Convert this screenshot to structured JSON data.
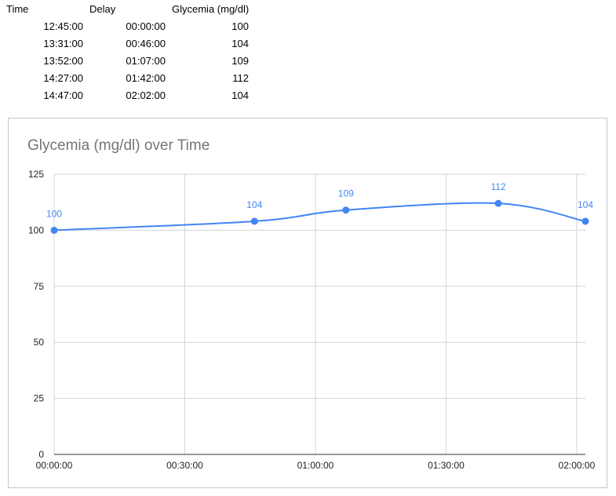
{
  "table": {
    "headers": [
      "Time",
      "Delay",
      "Glycemia (mg/dl)"
    ],
    "rows": [
      [
        "12:45:00",
        "00:00:00",
        "100"
      ],
      [
        "13:31:00",
        "00:46:00",
        "104"
      ],
      [
        "13:52:00",
        "01:07:00",
        "109"
      ],
      [
        "14:27:00",
        "01:42:00",
        "112"
      ],
      [
        "14:47:00",
        "02:02:00",
        "104"
      ]
    ]
  },
  "chart_data": {
    "type": "line",
    "title": "Glycemia (mg/dl) over Time",
    "xlabel": "",
    "ylabel": "",
    "x": [
      "00:00:00",
      "00:46:00",
      "01:07:00",
      "01:42:00",
      "02:02:00"
    ],
    "series": [
      {
        "values": [
          100,
          104,
          109,
          112,
          104
        ],
        "color": "#4285f4"
      }
    ],
    "ylim": [
      0,
      125
    ],
    "yticks": [
      0,
      25,
      50,
      75,
      100,
      125
    ],
    "xlim": [
      "00:00:00",
      "02:02:00"
    ],
    "xticks": [
      "00:00:00",
      "00:30:00",
      "01:00:00",
      "01:30:00",
      "02:00:00"
    ],
    "smooth": true,
    "grid": true,
    "data_labels": true,
    "legend": "none"
  }
}
